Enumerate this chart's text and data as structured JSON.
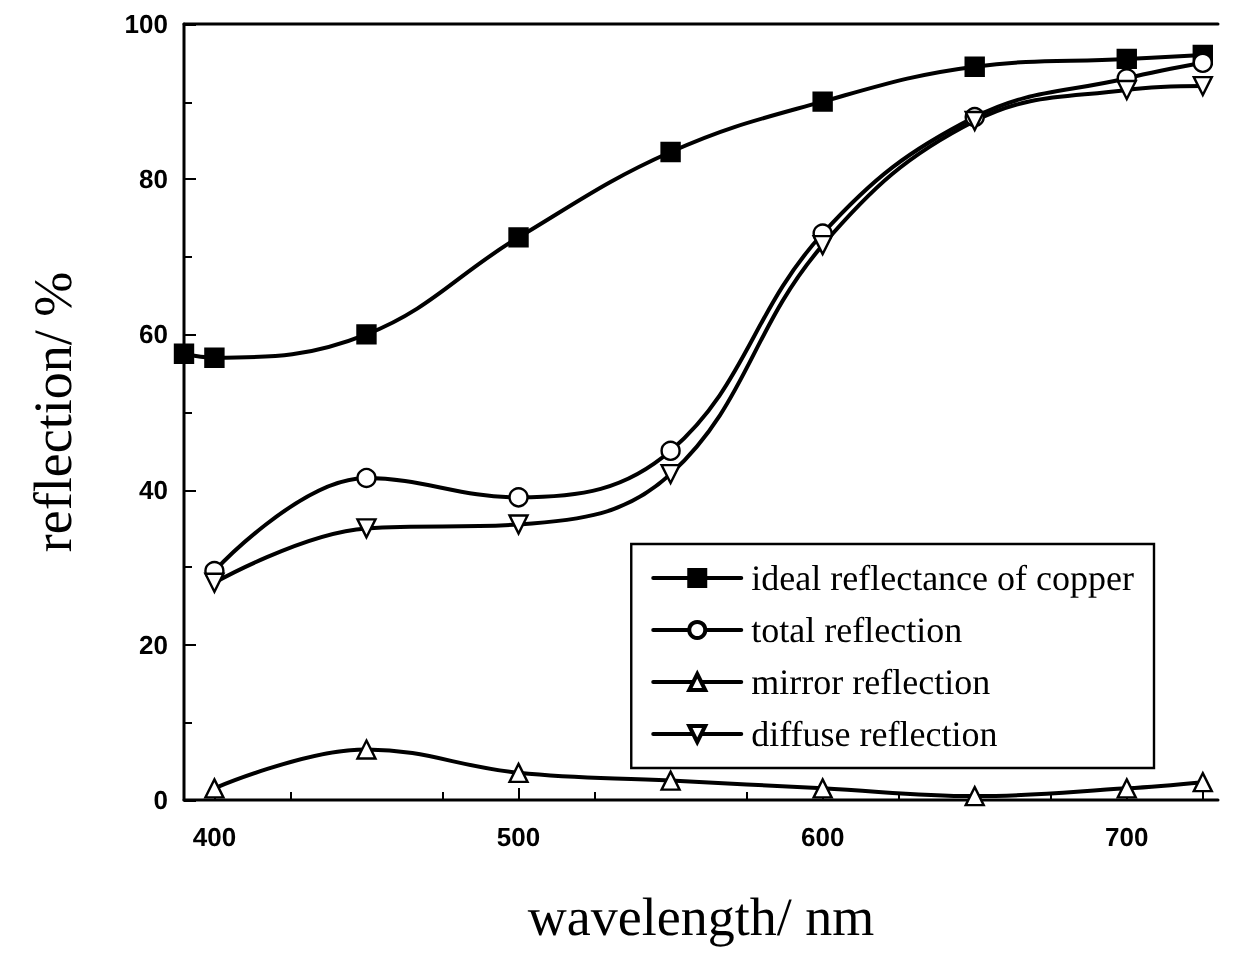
{
  "chart_data": {
    "type": "line",
    "xlabel": "wavelength/ nm",
    "ylabel": "reflection/ %",
    "x": [
      390,
      400,
      450,
      500,
      550,
      600,
      650,
      700,
      725
    ],
    "series": [
      {
        "name": "ideal reflectance of copper",
        "color": "#000000",
        "marker": "square",
        "values": [
          57.5,
          57,
          60,
          72.5,
          83.5,
          90,
          94.5,
          95.5,
          96
        ]
      },
      {
        "name": "total reflection",
        "color": "#000000",
        "marker": "circle",
        "x": [
          400,
          450,
          500,
          550,
          600,
          650,
          700,
          725
        ],
        "values": [
          29.5,
          41.5,
          39,
          45,
          73,
          88,
          93,
          95
        ]
      },
      {
        "name": "mirror reflection",
        "color": "#000000",
        "marker": "triangle",
        "x": [
          400,
          450,
          500,
          550,
          600,
          650,
          700,
          725
        ],
        "values": [
          1.5,
          6.5,
          3.5,
          2.5,
          1.5,
          0.5,
          1.5,
          2.3
        ]
      },
      {
        "name": "diffuse reflection",
        "color": "#000000",
        "marker": "triangle-down",
        "x": [
          400,
          450,
          500,
          550,
          600,
          650,
          700,
          725
        ],
        "values": [
          28,
          35,
          35.5,
          42,
          71.5,
          87.5,
          91.5,
          92
        ]
      }
    ],
    "xlim": [
      390,
      730
    ],
    "xticks": [
      400,
      500,
      600,
      700
    ],
    "ylim": [
      0,
      100
    ],
    "yticks": [
      0,
      20,
      40,
      60,
      80,
      100
    ],
    "grid": false,
    "legend": "bottom right",
    "line_style": "solid"
  }
}
